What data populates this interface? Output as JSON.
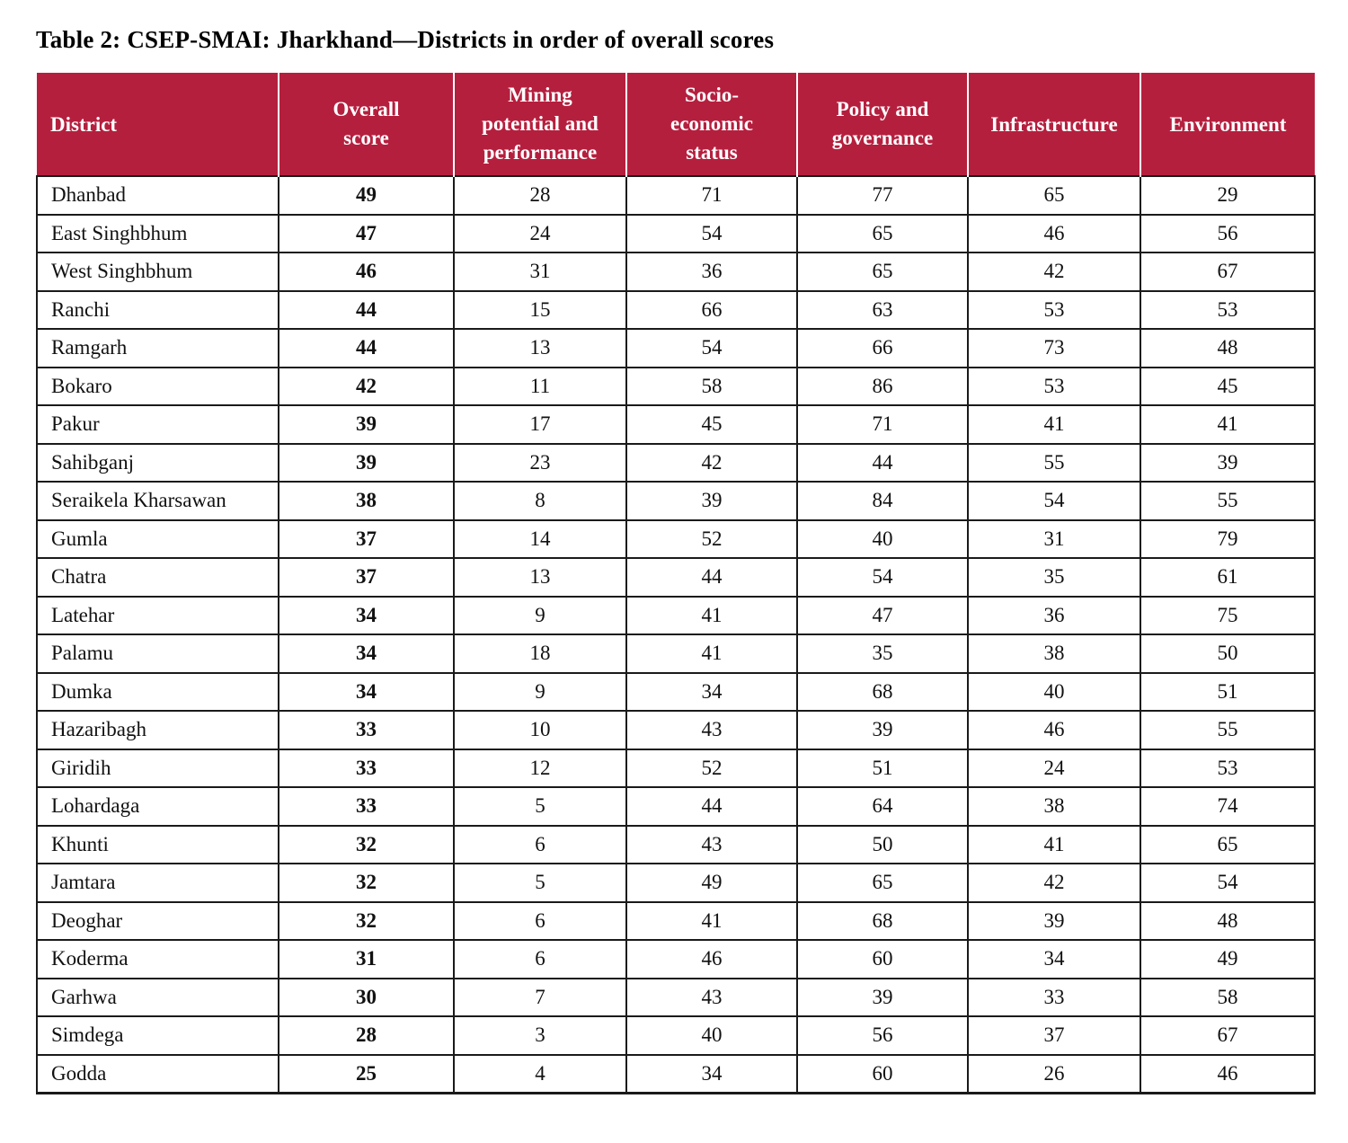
{
  "page_title": "Table 2: CSEP-SMAI: Jharkhand—Districts in order of overall scores",
  "colors": {
    "header_bg": "#b51f3e",
    "header_text": "#ffffff",
    "body_text": "#111111",
    "border": "#1a1a1a"
  },
  "table": {
    "columns": [
      "District",
      "Overall score",
      "Mining potential and performance",
      "Socio-economic status",
      "Policy and governance",
      "Infrastructure",
      "Environment"
    ],
    "rows": [
      [
        "Dhanbad",
        49,
        28,
        71,
        77,
        65,
        29
      ],
      [
        "East Singhbhum",
        47,
        24,
        54,
        65,
        46,
        56
      ],
      [
        "West Singhbhum",
        46,
        31,
        36,
        65,
        42,
        67
      ],
      [
        "Ranchi",
        44,
        15,
        66,
        63,
        53,
        53
      ],
      [
        "Ramgarh",
        44,
        13,
        54,
        66,
        73,
        48
      ],
      [
        "Bokaro",
        42,
        11,
        58,
        86,
        53,
        45
      ],
      [
        "Pakur",
        39,
        17,
        45,
        71,
        41,
        41
      ],
      [
        "Sahibganj",
        39,
        23,
        42,
        44,
        55,
        39
      ],
      [
        "Seraikela Kharsawan",
        38,
        8,
        39,
        84,
        54,
        55
      ],
      [
        "Gumla",
        37,
        14,
        52,
        40,
        31,
        79
      ],
      [
        "Chatra",
        37,
        13,
        44,
        54,
        35,
        61
      ],
      [
        "Latehar",
        34,
        9,
        41,
        47,
        36,
        75
      ],
      [
        "Palamu",
        34,
        18,
        41,
        35,
        38,
        50
      ],
      [
        "Dumka",
        34,
        9,
        34,
        68,
        40,
        51
      ],
      [
        "Hazaribagh",
        33,
        10,
        43,
        39,
        46,
        55
      ],
      [
        "Giridih",
        33,
        12,
        52,
        51,
        24,
        53
      ],
      [
        "Lohardaga",
        33,
        5,
        44,
        64,
        38,
        74
      ],
      [
        "Khunti",
        32,
        6,
        43,
        50,
        41,
        65
      ],
      [
        "Jamtara",
        32,
        5,
        49,
        65,
        42,
        54
      ],
      [
        "Deoghar",
        32,
        6,
        41,
        68,
        39,
        48
      ],
      [
        "Koderma",
        31,
        6,
        46,
        60,
        34,
        49
      ],
      [
        "Garhwa",
        30,
        7,
        43,
        39,
        33,
        58
      ],
      [
        "Simdega",
        28,
        3,
        40,
        56,
        37,
        67
      ],
      [
        "Godda",
        25,
        4,
        34,
        60,
        26,
        46
      ]
    ]
  }
}
